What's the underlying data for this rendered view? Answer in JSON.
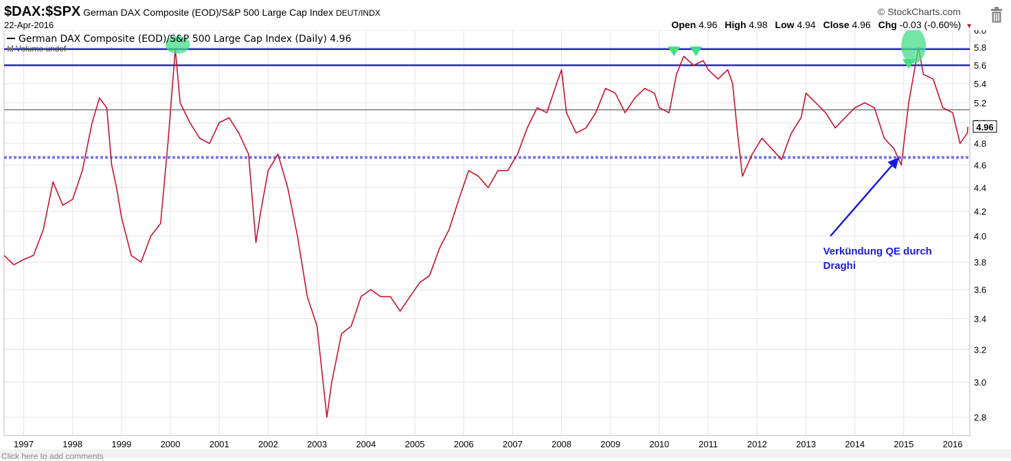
{
  "header": {
    "symbol": "$DAX:$SPX",
    "description": "German DAX Composite (EOD)/S&P 500 Large Cap Index",
    "exchange": "DEUT/INDX",
    "date": "22-Apr-2016",
    "brand": "StockCharts.com",
    "ohlc": {
      "open_label": "Open",
      "open": "4.96",
      "high_label": "High",
      "high": "4.98",
      "low_label": "Low",
      "low": "4.94",
      "close_label": "Close",
      "close": "4.96",
      "chg_label": "Chg",
      "chg": "-0.03 (-0.60%)"
    }
  },
  "footer": {
    "text": "Click here to add comments"
  },
  "colors": {
    "price_line": "#c8102e",
    "resistance": "#2222cc",
    "support_dotted": "#7777ee",
    "mid_line": "#999999",
    "highlight": "#44dd88",
    "annotation": "#1a1adf"
  },
  "chart_data": {
    "type": "line",
    "legend": [
      "German DAX Composite (EOD)/S&P 500 Large Cap Index (Daily) 4.96",
      "Volume undef"
    ],
    "x_ticks": [
      "1997",
      "1998",
      "1999",
      "2000",
      "2001",
      "2002",
      "2003",
      "2004",
      "2005",
      "2006",
      "2007",
      "2008",
      "2009",
      "2010",
      "2011",
      "2012",
      "2013",
      "2014",
      "2015",
      "2016"
    ],
    "y_ticks": [
      "2.8",
      "3.0",
      "3.2",
      "3.4",
      "3.6",
      "3.8",
      "4.0",
      "4.2",
      "4.4",
      "4.6",
      "4.8",
      "5.0",
      "5.2",
      "5.4",
      "5.6",
      "5.8",
      "6.0"
    ],
    "ylim": [
      2.7,
      6.0
    ],
    "y_scale": "log",
    "last_value_label": "4.96",
    "series": [
      {
        "values": [
          [
            1996.6,
            3.85
          ],
          [
            1996.8,
            3.78
          ],
          [
            1997.0,
            3.82
          ],
          [
            1997.2,
            3.85
          ],
          [
            1997.4,
            4.05
          ],
          [
            1997.6,
            4.45
          ],
          [
            1997.8,
            4.25
          ],
          [
            1998.0,
            4.3
          ],
          [
            1998.2,
            4.55
          ],
          [
            1998.4,
            5.0
          ],
          [
            1998.55,
            5.25
          ],
          [
            1998.7,
            5.15
          ],
          [
            1998.8,
            4.6
          ],
          [
            1998.9,
            4.4
          ],
          [
            1999.0,
            4.15
          ],
          [
            1999.2,
            3.85
          ],
          [
            1999.4,
            3.8
          ],
          [
            1999.6,
            4.0
          ],
          [
            1999.8,
            4.1
          ],
          [
            1999.95,
            4.8
          ],
          [
            2000.1,
            5.78
          ],
          [
            2000.2,
            5.2
          ],
          [
            2000.4,
            5.0
          ],
          [
            2000.6,
            4.85
          ],
          [
            2000.8,
            4.8
          ],
          [
            2001.0,
            5.0
          ],
          [
            2001.2,
            5.05
          ],
          [
            2001.4,
            4.9
          ],
          [
            2001.6,
            4.7
          ],
          [
            2001.75,
            3.95
          ],
          [
            2001.85,
            4.2
          ],
          [
            2002.0,
            4.55
          ],
          [
            2002.2,
            4.7
          ],
          [
            2002.4,
            4.4
          ],
          [
            2002.6,
            4.0
          ],
          [
            2002.8,
            3.55
          ],
          [
            2003.0,
            3.35
          ],
          [
            2003.2,
            2.8
          ],
          [
            2003.3,
            3.0
          ],
          [
            2003.5,
            3.3
          ],
          [
            2003.7,
            3.35
          ],
          [
            2003.9,
            3.55
          ],
          [
            2004.1,
            3.6
          ],
          [
            2004.3,
            3.55
          ],
          [
            2004.5,
            3.55
          ],
          [
            2004.7,
            3.45
          ],
          [
            2004.9,
            3.55
          ],
          [
            2005.1,
            3.65
          ],
          [
            2005.3,
            3.7
          ],
          [
            2005.5,
            3.9
          ],
          [
            2005.7,
            4.05
          ],
          [
            2005.9,
            4.3
          ],
          [
            2006.1,
            4.55
          ],
          [
            2006.3,
            4.5
          ],
          [
            2006.5,
            4.4
          ],
          [
            2006.7,
            4.55
          ],
          [
            2006.9,
            4.55
          ],
          [
            2007.1,
            4.7
          ],
          [
            2007.3,
            4.95
          ],
          [
            2007.5,
            5.15
          ],
          [
            2007.7,
            5.1
          ],
          [
            2007.9,
            5.4
          ],
          [
            2008.0,
            5.55
          ],
          [
            2008.1,
            5.1
          ],
          [
            2008.3,
            4.9
          ],
          [
            2008.5,
            4.95
          ],
          [
            2008.7,
            5.1
          ],
          [
            2008.9,
            5.35
          ],
          [
            2009.1,
            5.3
          ],
          [
            2009.3,
            5.1
          ],
          [
            2009.5,
            5.25
          ],
          [
            2009.7,
            5.35
          ],
          [
            2009.9,
            5.3
          ],
          [
            2010.0,
            5.15
          ],
          [
            2010.2,
            5.1
          ],
          [
            2010.35,
            5.5
          ],
          [
            2010.5,
            5.7
          ],
          [
            2010.7,
            5.6
          ],
          [
            2010.9,
            5.65
          ],
          [
            2011.0,
            5.55
          ],
          [
            2011.2,
            5.45
          ],
          [
            2011.4,
            5.55
          ],
          [
            2011.5,
            5.4
          ],
          [
            2011.6,
            4.9
          ],
          [
            2011.7,
            4.5
          ],
          [
            2011.9,
            4.7
          ],
          [
            2012.1,
            4.85
          ],
          [
            2012.3,
            4.75
          ],
          [
            2012.5,
            4.65
          ],
          [
            2012.7,
            4.9
          ],
          [
            2012.9,
            5.05
          ],
          [
            2013.0,
            5.3
          ],
          [
            2013.2,
            5.2
          ],
          [
            2013.4,
            5.1
          ],
          [
            2013.6,
            4.95
          ],
          [
            2013.8,
            5.05
          ],
          [
            2014.0,
            5.15
          ],
          [
            2014.2,
            5.2
          ],
          [
            2014.4,
            5.15
          ],
          [
            2014.6,
            4.85
          ],
          [
            2014.8,
            4.75
          ],
          [
            2014.95,
            4.6
          ],
          [
            2015.1,
            5.2
          ],
          [
            2015.3,
            5.8
          ],
          [
            2015.4,
            5.5
          ],
          [
            2015.6,
            5.45
          ],
          [
            2015.8,
            5.15
          ],
          [
            2016.0,
            5.1
          ],
          [
            2016.15,
            4.8
          ],
          [
            2016.3,
            4.9
          ],
          [
            2016.31,
            4.96
          ]
        ]
      }
    ],
    "horizontal_lines": [
      {
        "style": "solid",
        "color": "resistance",
        "y": 5.78
      },
      {
        "style": "solid",
        "color": "resistance",
        "y": 5.6
      },
      {
        "style": "solid",
        "color": "mid_line",
        "y": 5.13
      },
      {
        "style": "dotted",
        "color": "support_dotted",
        "y": 4.67
      }
    ],
    "highlights": [
      {
        "x": 2000.15,
        "y": 5.83,
        "shape": "circle"
      },
      {
        "x": 2015.2,
        "y": 5.82,
        "shape": "ellipse"
      },
      {
        "x": 2010.3,
        "y": 5.77,
        "shape": "triangle"
      },
      {
        "x": 2010.75,
        "y": 5.77,
        "shape": "triangle"
      },
      {
        "x": 2015.1,
        "y": 5.63,
        "shape": "triangle"
      }
    ],
    "annotation": {
      "text_line1": "Verkündung QE durch",
      "text_line2": "Draghi",
      "text_x": 2013.0,
      "text_y": 3.83,
      "arrow_from": [
        2013.5,
        4.0
      ],
      "arrow_to": [
        2014.9,
        4.67
      ]
    }
  }
}
